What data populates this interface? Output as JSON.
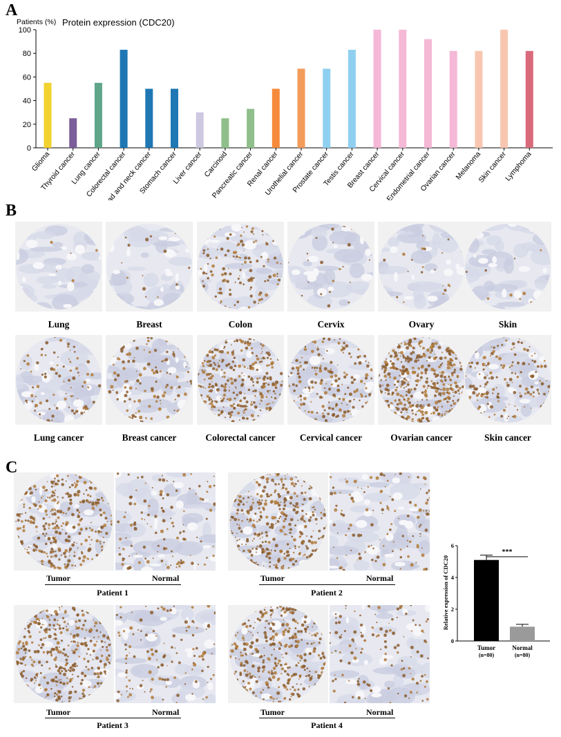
{
  "panels": {
    "a": "A",
    "b": "B",
    "c": "C"
  },
  "chart_data": [
    {
      "type": "bar",
      "title": "Protein expression (CDC20)",
      "ylabel": "Patients (%)",
      "xlabel": "",
      "ylim": [
        0,
        100
      ],
      "yticks": [
        0,
        20,
        40,
        60,
        80,
        100
      ],
      "categories": [
        "Glioma",
        "Thyroid cancer",
        "Lung cancer",
        "Colorectal cancer",
        "Head and neck cancer",
        "Stomach cancer",
        "Liver cancer",
        "Carcinoid",
        "Pancreatic cancer",
        "Renal cancer",
        "Urothelial cancer",
        "Prostate cancer",
        "Testis cancer",
        "Breast cancer",
        "Cervical cancer",
        "Endometrial cancer",
        "Ovarian cancer",
        "Melanoma",
        "Skin cancer",
        "Lymphoma"
      ],
      "values": [
        55,
        25,
        55,
        83,
        50,
        50,
        30,
        25,
        33,
        50,
        67,
        67,
        83,
        100,
        100,
        92,
        82,
        82,
        100,
        82
      ],
      "colors": [
        "#f2d22e",
        "#7c5e9a",
        "#5ea58a",
        "#1f77b4",
        "#1f77b4",
        "#1f77b4",
        "#cfc8e2",
        "#8fbf8a",
        "#8fbf8a",
        "#f58a3a",
        "#f39c5a",
        "#8fd0f0",
        "#8fd0f0",
        "#f5b8d6",
        "#f5b8d6",
        "#f5b8d6",
        "#f5b8d6",
        "#f8c6b0",
        "#f8c6b0",
        "#d96a7c"
      ],
      "grid": false
    },
    {
      "type": "bar",
      "title": "",
      "ylabel": "Relative expression of CDC20",
      "xlabel": "",
      "ylim": [
        0,
        6
      ],
      "yticks": [
        0,
        2,
        4,
        6
      ],
      "categories": [
        "Tumor",
        "Normal"
      ],
      "category_sublabels": [
        "(n=80)",
        "(n=80)"
      ],
      "values": [
        5.1,
        0.9
      ],
      "error": [
        0.3,
        0.15
      ],
      "colors": [
        "#000000",
        "#9a9a9a"
      ],
      "annotation": "***"
    }
  ],
  "panel_b": {
    "normal_labels": [
      "Lung",
      "Breast",
      "Colon",
      "Cervix",
      "Ovary",
      "Skin"
    ],
    "cancer_labels": [
      "Lung cancer",
      "Breast cancer",
      "Colorectal cancer",
      "Cervical cancer",
      "Ovarian cancer",
      "Skin cancer"
    ]
  },
  "panel_c": {
    "patients": [
      {
        "name": "Patient 1",
        "left": "Tumor",
        "right": "Normal"
      },
      {
        "name": "Patient 2",
        "left": "Tumor",
        "right": "Normal"
      },
      {
        "name": "Patient 3",
        "left": "Tumor",
        "right": "Normal"
      },
      {
        "name": "Patient 4",
        "left": "Tumor",
        "right": "Normal"
      }
    ]
  }
}
